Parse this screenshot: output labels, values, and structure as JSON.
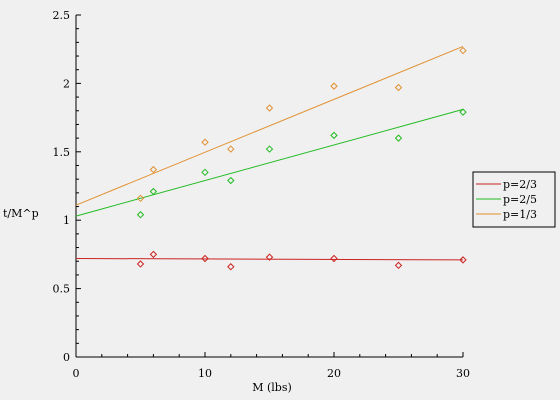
{
  "chart_data": {
    "type": "scatter",
    "title": "",
    "xlabel": "M (lbs)",
    "ylabel": "t/M^p",
    "xlim": [
      0,
      30
    ],
    "ylim": [
      0,
      2.5
    ],
    "xticks": [
      0,
      10,
      20,
      30
    ],
    "yticks": [
      0,
      0.5,
      1,
      1.5,
      2,
      2.5
    ],
    "legend": "right",
    "grid": false,
    "series": [
      {
        "name": "p=2/3",
        "color": "#cc2222",
        "points": [
          [
            5,
            0.68
          ],
          [
            6,
            0.75
          ],
          [
            10,
            0.72
          ],
          [
            12,
            0.66
          ],
          [
            15,
            0.73
          ],
          [
            20,
            0.72
          ],
          [
            25,
            0.67
          ],
          [
            30,
            0.71
          ]
        ],
        "fit": [
          [
            0,
            0.72
          ],
          [
            30,
            0.71
          ]
        ]
      },
      {
        "name": "p=2/5",
        "color": "#22bb22",
        "points": [
          [
            5,
            1.04
          ],
          [
            6,
            1.21
          ],
          [
            10,
            1.35
          ],
          [
            12,
            1.29
          ],
          [
            15,
            1.52
          ],
          [
            20,
            1.62
          ],
          [
            25,
            1.6
          ],
          [
            30,
            1.79
          ]
        ],
        "fit": [
          [
            0,
            1.03
          ],
          [
            30,
            1.81
          ]
        ]
      },
      {
        "name": "p=1/3",
        "color": "#e09030",
        "points": [
          [
            5,
            1.16
          ],
          [
            6,
            1.37
          ],
          [
            10,
            1.57
          ],
          [
            12,
            1.52
          ],
          [
            15,
            1.82
          ],
          [
            20,
            1.98
          ],
          [
            25,
            1.97
          ],
          [
            30,
            2.24
          ]
        ],
        "fit": [
          [
            0,
            1.11
          ],
          [
            30,
            2.27
          ]
        ]
      }
    ]
  }
}
